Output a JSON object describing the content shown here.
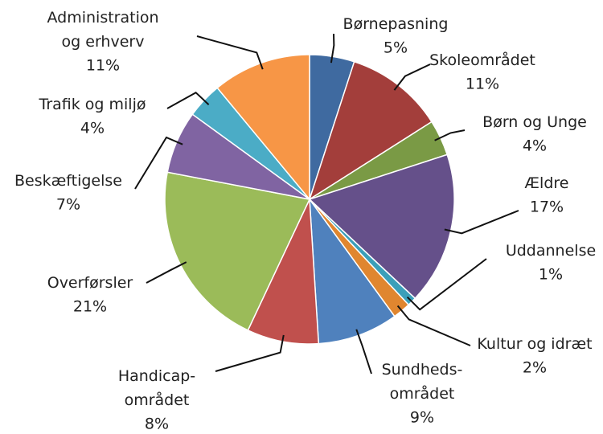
{
  "chart_data": {
    "type": "pie",
    "categories": [
      "Børnepasning",
      "Skoleområdet",
      "Børn og Unge",
      "Ældre",
      "Uddannelse",
      "Kultur og idræt",
      "Sundheds-\nområdet",
      "Handicap-\nområdet",
      "Overførsler",
      "Beskæftigelse",
      "Trafik og miljø",
      "Administration\nog erhverv"
    ],
    "values": [
      5,
      11,
      4,
      17,
      1,
      2,
      9,
      8,
      21,
      7,
      4,
      11
    ],
    "value_labels": [
      "5%",
      "11%",
      "4%",
      "17%",
      "1%",
      "2%",
      "9%",
      "8%",
      "21%",
      "7%",
      "4%",
      "11%"
    ],
    "colors": [
      "#3f6aa0",
      "#a33e3b",
      "#7a9a45",
      "#65508a",
      "#3b9fb9",
      "#e0862f",
      "#4f81bd",
      "#c0504d",
      "#9bbb59",
      "#8064a2",
      "#4bacc6",
      "#f79646"
    ]
  }
}
